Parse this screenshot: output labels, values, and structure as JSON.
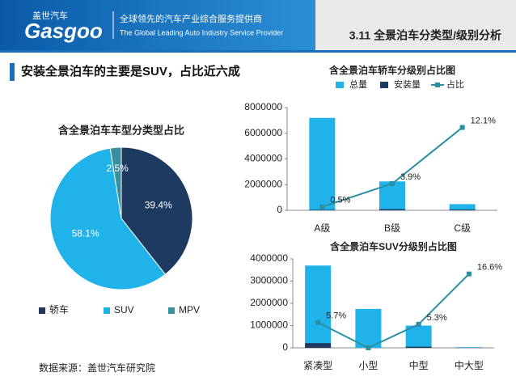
{
  "header": {
    "logo": "Gasgoo",
    "brand": "盖世汽车",
    "tagline_cn": "全球领先的汽车产业综合服务提供商",
    "tagline_en": "The Global Leading Auto Industry Service Provider",
    "section": "3.11 全景泊车分类型/级别分析"
  },
  "headline": "安装全景泊车的主要是SUV，占比近六成",
  "source": "数据来源：盖世汽车研究院",
  "chart_data": [
    {
      "type": "pie",
      "title": "含全景泊车车型分类型占比",
      "categories": [
        "轿车",
        "SUV",
        "MPV"
      ],
      "values": [
        39.4,
        58.1,
        2.5
      ],
      "value_labels": [
        "39.4%",
        "58.1%",
        "2.5%"
      ],
      "colors": [
        "#1f3a60",
        "#1fb3ea",
        "#3a8e9e"
      ],
      "legend": "bottom"
    },
    {
      "type": "bar",
      "title": "含全景泊车轿车分级别占比图",
      "categories": [
        "A级",
        "B级",
        "C级"
      ],
      "series": [
        {
          "name": "总量",
          "color": "#1fb3ea",
          "values": [
            7200000,
            2250000,
            480000
          ]
        },
        {
          "name": "安装量",
          "color": "#1f3a60",
          "values": [
            36000,
            88000,
            58000
          ]
        },
        {
          "name": "占比",
          "color": "#2a8fa3",
          "axis": "y2",
          "values": [
            0.5,
            3.9,
            12.1
          ],
          "value_labels": [
            "0.5%",
            "3.9%",
            "12.1%"
          ]
        }
      ],
      "ylim": [
        0,
        8000000
      ],
      "yticks": [
        0,
        2000000,
        4000000,
        6000000,
        8000000
      ],
      "y2lim": [
        0,
        15
      ],
      "legend": "top"
    },
    {
      "type": "bar",
      "title": "含全景泊车SUV分级别占比图",
      "categories": [
        "紧凑型",
        "小型",
        "中型",
        "中大型"
      ],
      "series": [
        {
          "color": "#1fb3ea",
          "values": [
            3700000,
            1750000,
            1000000,
            30000
          ]
        },
        {
          "color": "#1f3a60",
          "values": [
            211000,
            0,
            53000,
            5000
          ]
        },
        {
          "color": "#2a8fa3",
          "axis": "y2",
          "values": [
            5.7,
            0,
            5.3,
            16.6
          ],
          "value_labels": [
            "5.7%",
            null,
            "5.3%",
            "16.6%"
          ]
        }
      ],
      "ylim": [
        0,
        4000000
      ],
      "yticks": [
        0,
        1000000,
        2000000,
        3000000,
        4000000
      ],
      "y2lim": [
        0,
        20
      ]
    }
  ]
}
